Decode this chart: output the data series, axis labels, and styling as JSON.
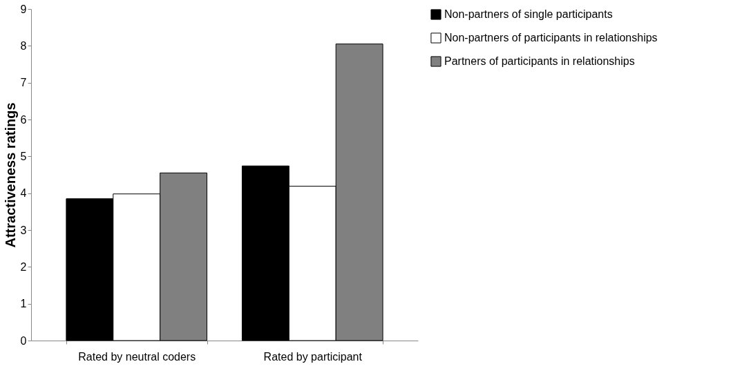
{
  "chart_data": {
    "type": "bar",
    "ylabel": "Attractiveness ratings",
    "categories": [
      "Rated by neutral coders",
      "Rated by participant"
    ],
    "series": [
      {
        "name": "Non-partners of single participants",
        "color": "#000000",
        "values": [
          3.85,
          4.74
        ]
      },
      {
        "name": "Non-partners of participants in relationships",
        "color": "#ffffff",
        "values": [
          3.98,
          4.19
        ]
      },
      {
        "name": "Partners of participants in relationships",
        "color": "#808080",
        "values": [
          4.55,
          8.05
        ]
      }
    ],
    "ylim": [
      0,
      9
    ],
    "yticks": [
      0,
      1,
      2,
      3,
      4,
      5,
      6,
      7,
      8,
      9
    ],
    "grid": false,
    "legend": "right"
  }
}
